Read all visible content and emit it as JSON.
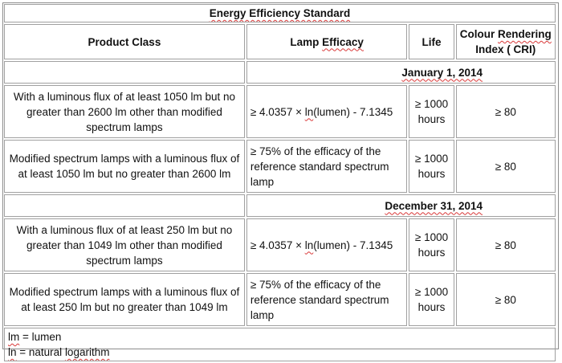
{
  "table": {
    "title": "Energy Efficiency Standard",
    "headers": {
      "product_class": "Product Class",
      "lamp_efficacy_prefix": "Lamp ",
      "lamp_efficacy_word": "Efficacy",
      "life": "Life",
      "cri_line1_a": "Colour ",
      "cri_line1_b": "Rendering",
      "cri_line2": "Index ( CRI)"
    },
    "sections": [
      {
        "date": "January  1, 2014",
        "rows": [
          {
            "product_class": "With a luminous flux of at least 1050 lm but no greater than 2600 lm other than modified spectrum lamps",
            "efficacy_before": "≥ 4.0357 × ",
            "efficacy_ln": "ln",
            "efficacy_after": "(lumen)  - 7.1345",
            "life_value": "≥ 1000",
            "life_unit": "hours",
            "cri": "≥ 80"
          },
          {
            "product_class": "Modified spectrum lamps with a luminous flux of at least 1050 lm but no greater than 2600 lm",
            "efficacy_text": "≥ 75% of the efficacy of the reference standard spectrum lamp",
            "life_value": "≥ 1000",
            "life_unit": "hours",
            "cri": "≥ 80"
          }
        ]
      },
      {
        "date": "December 31, 2014",
        "rows": [
          {
            "product_class": "With a luminous flux of at least 250 lm but no greater than 1049 lm other than modified spectrum lamps",
            "efficacy_before": "≥ 4.0357 × ",
            "efficacy_ln": "ln",
            "efficacy_after": "(lumen)  - 7.1345",
            "life_value": "≥ 1000",
            "life_unit": "hours",
            "cri": "≥ 80"
          },
          {
            "product_class": "Modified spectrum lamps with a luminous flux of at least 250 lm but no greater than 1049 lm",
            "efficacy_text": "≥ 75% of the efficacy of the reference standard spectrum lamp",
            "life_value": "≥ 1000",
            "life_unit": "hours",
            "cri": "≥ 80"
          }
        ]
      }
    ],
    "footnotes": {
      "lm_abbr": "lm",
      "lm_def": " = lumen",
      "ln_abbr": "ln",
      "ln_def_a": " = natural ",
      "ln_def_b": "logarithm"
    }
  },
  "colors": {
    "border": "#a0a0a0",
    "spellcheck_underline": "#d93838",
    "text": "#111111"
  }
}
